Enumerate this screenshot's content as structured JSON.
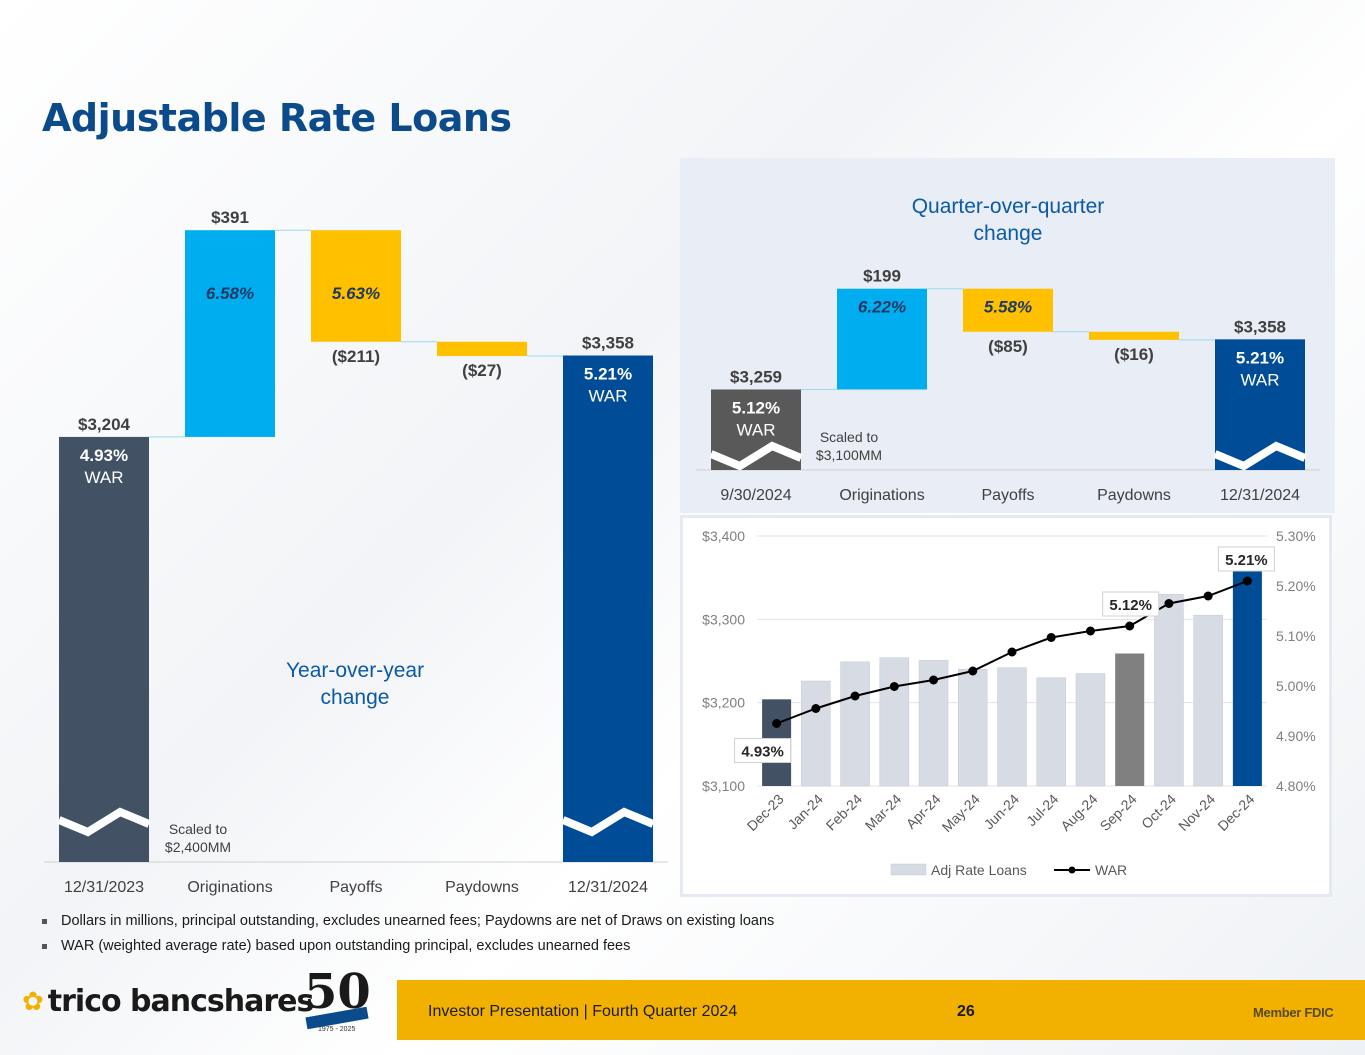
{
  "page": {
    "title": "Adjustable Rate Loans",
    "notes": [
      "Dollars in millions, principal outstanding, excludes unearned fees; Paydowns are net of Draws on existing loans",
      "WAR (weighted average rate) based upon outstanding principal, excludes unearned fees"
    ],
    "footer_text": "Investor Presentation  |  Fourth Quarter 2024",
    "page_number": "26",
    "fdic": "Member FDIC",
    "logo_text": "trico bancshares",
    "anniversary": {
      "number": "50",
      "years": "1975 - 2025"
    }
  },
  "chart_data": [
    {
      "type": "bar",
      "subtype": "waterfall",
      "annotation": "Year-over-year change",
      "scale_note": "Scaled to $2,400MM",
      "categories": [
        "12/31/2023",
        "Originations",
        "Payoffs",
        "Paydowns",
        "12/31/2024"
      ],
      "values": [
        3204,
        391,
        -211,
        -27,
        3358
      ],
      "value_labels": [
        "$3,204",
        "$391",
        "($211)",
        "($27)",
        "$3,358"
      ],
      "rate_labels": [
        "4.93%",
        "6.58%",
        "5.63%",
        "",
        "5.21%"
      ],
      "war_label": "WAR",
      "colors": [
        "#435165",
        "#00aeef",
        "#ffc000",
        "#ffc000",
        "#004c97"
      ]
    },
    {
      "type": "bar",
      "subtype": "waterfall",
      "annotation": "Quarter-over-quarter change",
      "scale_note": "Scaled to $3,100MM",
      "categories": [
        "9/30/2024",
        "Originations",
        "Payoffs",
        "Paydowns",
        "12/31/2024"
      ],
      "values": [
        3259,
        199,
        -85,
        -16,
        3358
      ],
      "value_labels": [
        "$3,259",
        "$199",
        "($85)",
        "($16)",
        "$3,358"
      ],
      "rate_labels": [
        "5.12%",
        "6.22%",
        "5.58%",
        "",
        "5.21%"
      ],
      "war_label": "WAR",
      "colors": [
        "#595959",
        "#00aeef",
        "#ffc000",
        "#ffc000",
        "#004c97"
      ]
    },
    {
      "type": "bar",
      "subtype": "bar-line-combo",
      "categories": [
        "Dec-23",
        "Jan-24",
        "Feb-24",
        "Mar-24",
        "Apr-24",
        "May-24",
        "Jun-24",
        "Jul-24",
        "Aug-24",
        "Sep-24",
        "Oct-24",
        "Nov-24",
        "Dec-24"
      ],
      "series": [
        {
          "name": "Adj Rate Loans",
          "axis": "left",
          "values": [
            3204,
            3226,
            3249,
            3254,
            3251,
            3240,
            3242,
            3230,
            3235,
            3259,
            3330,
            3305,
            3358
          ]
        },
        {
          "name": "WAR",
          "axis": "right",
          "values": [
            4.925,
            4.955,
            4.98,
            4.999,
            5.012,
            5.03,
            5.068,
            5.097,
            5.11,
            5.12,
            5.165,
            5.18,
            5.21
          ]
        }
      ],
      "bar_colors": [
        "#435165",
        "#d6dbe4",
        "#d6dbe4",
        "#d6dbe4",
        "#d6dbe4",
        "#d6dbe4",
        "#d6dbe4",
        "#d6dbe4",
        "#d6dbe4",
        "#808080",
        "#d6dbe4",
        "#d6dbe4",
        "#004c97"
      ],
      "callouts": [
        {
          "index": 0,
          "text": "4.93%"
        },
        {
          "index": 9,
          "text": "5.12%"
        },
        {
          "index": 12,
          "text": "5.21%"
        }
      ],
      "ylim": [
        3100,
        3400
      ],
      "y_ticks": [
        "$3,100",
        "$3,200",
        "$3,300",
        "$3,400"
      ],
      "y2lim": [
        4.8,
        5.3
      ],
      "y2_ticks": [
        "4.80%",
        "4.90%",
        "5.00%",
        "5.10%",
        "5.20%",
        "5.30%"
      ],
      "legend_position": "bottom"
    }
  ]
}
